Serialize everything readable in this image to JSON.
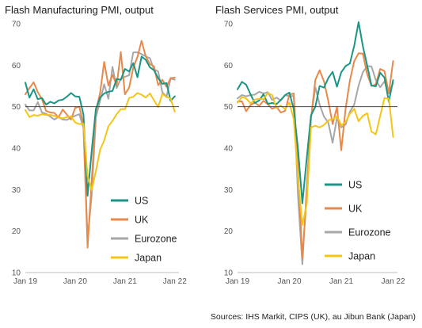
{
  "colors": {
    "US": "#1b9584",
    "UK": "#e8884a",
    "Eurozone": "#a7a7a7",
    "Japan": "#f5c516"
  },
  "source": "Sources: IHS Markit, CIPS (UK), au Jibun Bank (Japan)",
  "chart_data": [
    {
      "type": "line",
      "title": "Flash Manufacturing PMI, output",
      "ylim": [
        10,
        70
      ],
      "yticks": [
        10,
        20,
        30,
        40,
        50,
        60,
        70
      ],
      "xlim": [
        0,
        37
      ],
      "xticks": [
        {
          "pos": 0,
          "label": "Jan 19"
        },
        {
          "pos": 12,
          "label": "Jan 20"
        },
        {
          "pos": 24,
          "label": "Jan 21"
        },
        {
          "pos": 36,
          "label": "Jan 22"
        }
      ],
      "reference_line": 50,
      "legend_placement": "bottom-right",
      "series": [
        {
          "name": "US",
          "values": [
            55.8,
            52.2,
            54.2,
            51.8,
            52.1,
            50.5,
            51.2,
            50.8,
            51.5,
            51.7,
            52.4,
            53.3,
            52.5,
            52.4,
            48.1,
            28.5,
            39.5,
            49.5,
            52.2,
            53.2,
            53.6,
            53.8,
            56.7,
            56.5,
            59.1,
            58.5,
            60.5,
            57.1,
            62.1,
            61.3,
            59.5,
            58.8,
            56.9,
            55.5,
            55.7,
            51.4,
            52.5
          ]
        },
        {
          "name": "UK",
          "values": [
            53.0,
            54.5,
            55.9,
            53.5,
            51.8,
            49.0,
            48.6,
            48.5,
            47.4,
            49.3,
            48.1,
            46.9,
            49.7,
            50.0,
            45.5,
            16.0,
            32.5,
            48.9,
            53.3,
            60.8,
            55.1,
            57.7,
            55.2,
            63.2,
            53.0,
            54.6,
            59.4,
            62.0,
            65.9,
            62.1,
            60.3,
            59.7,
            55.2,
            56.5,
            54.8,
            56.9,
            57.0
          ]
        },
        {
          "name": "Eurozone",
          "values": [
            50.5,
            49.1,
            49.1,
            51.1,
            48.6,
            48.3,
            47.6,
            46.9,
            47.5,
            46.9,
            46.8,
            47.4,
            47.8,
            48.2,
            44.9,
            18.1,
            28.9,
            47.4,
            51.4,
            55.4,
            51.9,
            59.6,
            54.5,
            56.7,
            57.2,
            57.6,
            63.1,
            63.1,
            62.7,
            62.1,
            61.7,
            59.0,
            58.5,
            53.5,
            52.4,
            56.8,
            56.5
          ]
        },
        {
          "name": "Japan",
          "values": [
            49.2,
            47.5,
            48.0,
            47.8,
            48.2,
            48.0,
            48.0,
            47.8,
            47.4,
            47.2,
            47.5,
            47.7,
            46.2,
            45.8,
            45.9,
            33.2,
            29.9,
            34.5,
            39.6,
            41.9,
            45.3,
            46.6,
            48.2,
            49.4,
            49.4,
            52.1,
            52.4,
            53.3,
            52.9,
            52.2,
            53.2,
            51.5,
            49.9,
            53.1,
            52.3,
            52.0,
            48.8
          ]
        }
      ]
    },
    {
      "type": "line",
      "title": "Flash Services PMI, output",
      "ylim": [
        10,
        70
      ],
      "yticks": [
        10,
        20,
        30,
        40,
        50,
        60,
        70
      ],
      "xlim": [
        0,
        37
      ],
      "xticks": [
        {
          "pos": 0,
          "label": "Jan 19"
        },
        {
          "pos": 12,
          "label": "Jan 20"
        },
        {
          "pos": 24,
          "label": "Jan 21"
        },
        {
          "pos": 36,
          "label": "Jan 22"
        }
      ],
      "reference_line": 50,
      "legend_placement": "bottom-right",
      "series": [
        {
          "name": "US",
          "values": [
            54.2,
            56.0,
            55.3,
            53.0,
            50.9,
            51.5,
            53.0,
            50.7,
            50.9,
            50.6,
            51.6,
            52.8,
            53.4,
            49.4,
            39.8,
            26.7,
            37.5,
            47.9,
            50.0,
            55.0,
            54.6,
            56.9,
            58.4,
            54.8,
            58.3,
            59.8,
            60.4,
            64.7,
            70.4,
            64.6,
            59.9,
            55.1,
            54.9,
            58.2,
            57.0,
            51.2,
            56.4
          ]
        },
        {
          "name": "UK",
          "values": [
            51.2,
            51.3,
            48.9,
            50.4,
            51.0,
            50.2,
            51.4,
            50.6,
            49.5,
            50.0,
            48.6,
            49.0,
            52.9,
            53.2,
            34.5,
            13.4,
            29.0,
            47.1,
            56.5,
            58.8,
            56.1,
            51.4,
            45.8,
            49.9,
            39.5,
            49.5,
            56.3,
            61.0,
            62.9,
            62.8,
            57.8,
            55.0,
            55.4,
            59.1,
            58.6,
            53.2,
            61.0
          ]
        },
        {
          "name": "Eurozone",
          "values": [
            52.0,
            52.8,
            52.5,
            52.8,
            52.9,
            53.6,
            53.2,
            53.5,
            51.6,
            52.2,
            51.5,
            52.8,
            52.5,
            52.6,
            28.4,
            12.0,
            30.5,
            47.3,
            54.7,
            50.5,
            47.6,
            46.2,
            41.3,
            47.3,
            45.0,
            45.7,
            48.8,
            50.5,
            55.1,
            58.3,
            59.8,
            59.7,
            56.4,
            54.7,
            56.1,
            53.3,
            55.7
          ]
        },
        {
          "name": "Japan",
          "values": [
            51.0,
            52.3,
            52.0,
            50.8,
            51.7,
            51.9,
            51.8,
            53.3,
            52.8,
            49.7,
            50.3,
            49.4,
            51.0,
            47.0,
            32.7,
            21.5,
            26.5,
            45.0,
            45.4,
            45.0,
            45.6,
            46.7,
            47.0,
            47.7,
            45.5,
            46.3,
            48.3,
            49.5,
            46.5,
            47.8,
            48.4,
            44.0,
            43.3,
            47.8,
            52.1,
            52.0,
            42.7
          ]
        }
      ]
    }
  ]
}
